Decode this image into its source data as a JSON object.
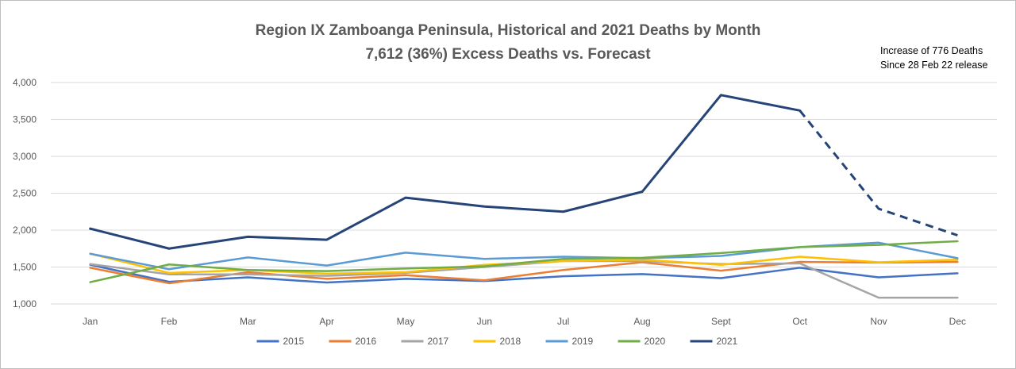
{
  "chart_data": {
    "type": "line",
    "title": "Region IX Zamboanga Peninsula, Historical and 2021 Deaths by Month",
    "subtitle": "7,612 (36%) Excess Deaths vs. Forecast",
    "annotation": [
      "Increase of 776 Deaths",
      "Since 28 Feb 22 release"
    ],
    "categories": [
      "Jan",
      "Feb",
      "Mar",
      "Apr",
      "May",
      "Jun",
      "Jul",
      "Aug",
      "Sept",
      "Oct",
      "Nov",
      "Dec"
    ],
    "ylim": [
      1000,
      4000
    ],
    "yticks": [
      1000,
      1500,
      2000,
      2500,
      3000,
      3500,
      4000
    ],
    "ytick_labels": [
      "1,000",
      "1,500",
      "2,000",
      "2,500",
      "3,000",
      "3,500",
      "4,000"
    ],
    "grid": true,
    "legend_position": "bottom",
    "series": [
      {
        "name": "2015",
        "color": "#4472c4",
        "values": [
          1530,
          1300,
          1360,
          1290,
          1340,
          1310,
          1375,
          1405,
          1350,
          1490,
          1360,
          1415
        ]
      },
      {
        "name": "2016",
        "color": "#ed7d31",
        "values": [
          1490,
          1280,
          1430,
          1340,
          1390,
          1320,
          1460,
          1565,
          1450,
          1570,
          1560,
          1570
        ]
      },
      {
        "name": "2017",
        "color": "#a5a5a5",
        "values": [
          1540,
          1400,
          1400,
          1380,
          1420,
          1500,
          1580,
          1580,
          1540,
          1550,
          1085,
          1085
        ]
      },
      {
        "name": "2018",
        "color": "#ffc000",
        "values": [
          1680,
          1420,
          1460,
          1410,
          1430,
          1530,
          1580,
          1600,
          1530,
          1640,
          1565,
          1600
        ]
      },
      {
        "name": "2019",
        "color": "#5b9bd5",
        "values": [
          1680,
          1470,
          1630,
          1520,
          1695,
          1610,
          1640,
          1620,
          1650,
          1770,
          1830,
          1620
        ]
      },
      {
        "name": "2020",
        "color": "#70ad47",
        "values": [
          1295,
          1535,
          1460,
          1445,
          1480,
          1510,
          1610,
          1625,
          1690,
          1770,
          1800,
          1850
        ]
      },
      {
        "name": "2021",
        "color": "#264478",
        "values": [
          2020,
          1750,
          1910,
          1870,
          2440,
          2320,
          2250,
          2520,
          3830,
          3620,
          2290,
          1930
        ],
        "dashed_from_index": 9
      }
    ]
  }
}
